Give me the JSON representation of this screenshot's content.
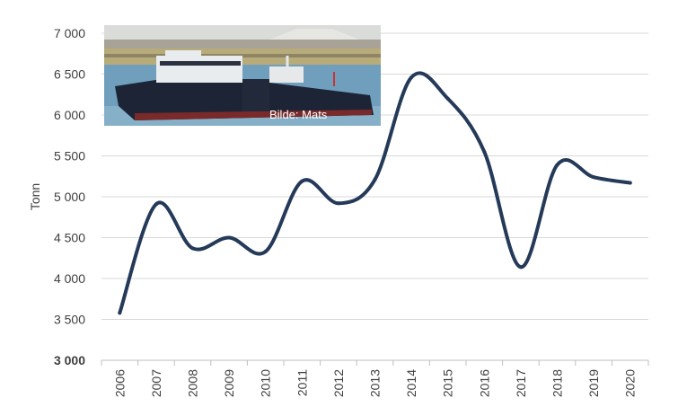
{
  "chart_data": {
    "type": "line",
    "title": "",
    "xlabel": "",
    "ylabel": "Tonn",
    "ylim": [
      3000,
      7000
    ],
    "y_ticks": [
      3000,
      3500,
      4000,
      4500,
      5000,
      5500,
      6000,
      6500,
      7000
    ],
    "y_tick_labels": [
      "3 000",
      "3 500",
      "4 000",
      "4 500",
      "5 000",
      "5 500",
      "6 000",
      "6 500",
      "7 000"
    ],
    "categories": [
      "2006",
      "2007",
      "2008",
      "2009",
      "2010",
      "2011",
      "2012",
      "2013",
      "2014",
      "2015",
      "2016",
      "2017",
      "2018",
      "2019",
      "2020"
    ],
    "series": [
      {
        "color": "#243a58",
        "values": [
          3580,
          4910,
          4370,
          4500,
          4330,
          5190,
          4920,
          5210,
          6460,
          6200,
          5550,
          4140,
          5390,
          5240,
          5170
        ]
      }
    ],
    "grid": true,
    "photo_caption": "Bilde: Mats"
  }
}
